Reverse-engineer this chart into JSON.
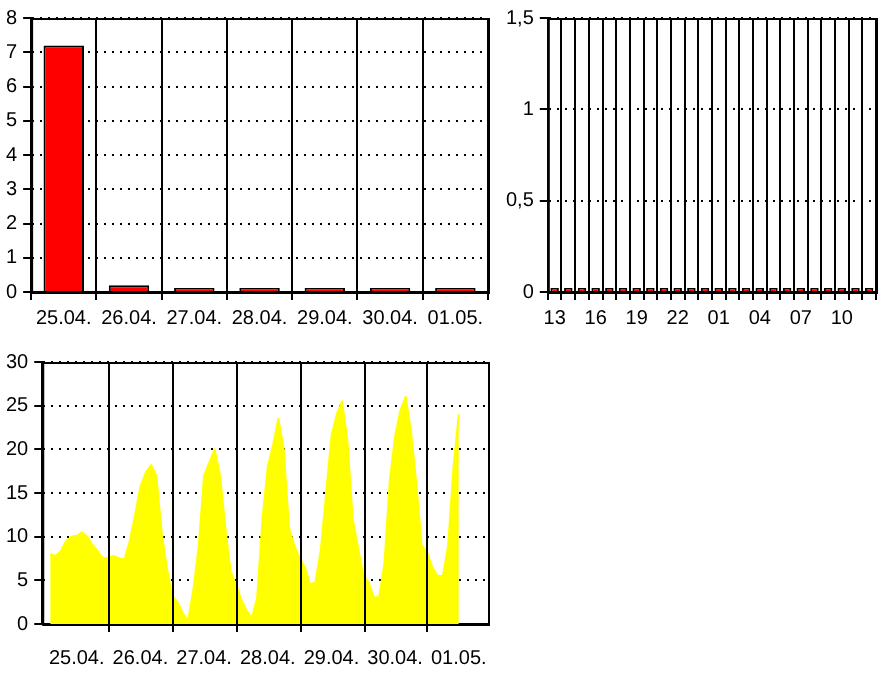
{
  "chart_data": [
    {
      "type": "bar",
      "categories": [
        "25.04.",
        "26.04.",
        "27.04.",
        "28.04.",
        "29.04.",
        "30.04.",
        "01.05."
      ],
      "values": [
        7.2,
        0.2,
        0,
        0,
        0,
        0,
        0
      ],
      "color": "#ff0000",
      "ylim": [
        0,
        8
      ],
      "yticks": [
        0,
        1,
        2,
        3,
        4,
        5,
        6,
        7,
        8
      ],
      "grid": true
    },
    {
      "type": "bar",
      "categories": [
        "13",
        null,
        null,
        "16",
        null,
        null,
        "19",
        null,
        null,
        "22",
        null,
        null,
        "01",
        null,
        null,
        "04",
        null,
        null,
        "07",
        null,
        null,
        "10",
        null,
        null
      ],
      "values": [
        0,
        0,
        0,
        0,
        0,
        0,
        0,
        0,
        0,
        0,
        0,
        0,
        0,
        0,
        0,
        0,
        0,
        0,
        0,
        0,
        0,
        0,
        0,
        0
      ],
      "color": "#ff0000",
      "ylim": [
        0,
        1.5
      ],
      "yticks": [
        0,
        {
          "value": 0.5,
          "label": "0,5"
        },
        1,
        {
          "value": 1.5,
          "label": "1,5"
        }
      ],
      "grid": true
    },
    {
      "type": "area",
      "categories": [
        null,
        null,
        null,
        null,
        null,
        null,
        "25.04.",
        null,
        null,
        null,
        null,
        null,
        null,
        null,
        null,
        null,
        null,
        null,
        "26.04.",
        null,
        null,
        null,
        null,
        null,
        null,
        null,
        null,
        null,
        null,
        null,
        "27.04.",
        null,
        null,
        null,
        null,
        null,
        null,
        null,
        null,
        null,
        null,
        null,
        "28.04.",
        null,
        null,
        null,
        null,
        null,
        null,
        null,
        null,
        null,
        null,
        null,
        "29.04.",
        null,
        null,
        null,
        null,
        null,
        null,
        null,
        null,
        null,
        null,
        null,
        "30.04.",
        null,
        null,
        null,
        null,
        null,
        null,
        null,
        null,
        null,
        null,
        null,
        "01.05.",
        null,
        null,
        null,
        null,
        null
      ],
      "values": [
        null,
        8,
        7.8,
        8.3,
        9.5,
        10,
        10.1,
        10.5,
        10,
        9,
        8.3,
        7.5,
        7.6,
        7.8,
        7.5,
        7.4,
        9.5,
        12.5,
        15.7,
        17.3,
        18.2,
        17,
        10.5,
        6.3,
        3.2,
        2.5,
        1.2,
        0.4,
        4,
        9,
        17,
        18.5,
        20,
        17,
        11,
        6,
        4.5,
        2.8,
        1.5,
        0.7,
        3,
        12,
        18,
        20.5,
        23.5,
        20,
        11,
        9,
        7.5,
        6.5,
        4.5,
        4.8,
        8.5,
        15,
        21.5,
        24,
        25.5,
        21,
        12,
        8.8,
        5.5,
        4.8,
        3,
        3.1,
        7,
        16.5,
        21.5,
        24.5,
        26,
        22,
        16,
        9,
        8.2,
        6.5,
        5.5,
        5.5,
        9,
        18,
        24,
        null,
        null,
        null,
        null,
        null
      ],
      "color": "#ffff00",
      "ylim": [
        0,
        30
      ],
      "yticks": [
        0,
        5,
        10,
        15,
        20,
        25,
        30
      ],
      "grid": true
    }
  ]
}
